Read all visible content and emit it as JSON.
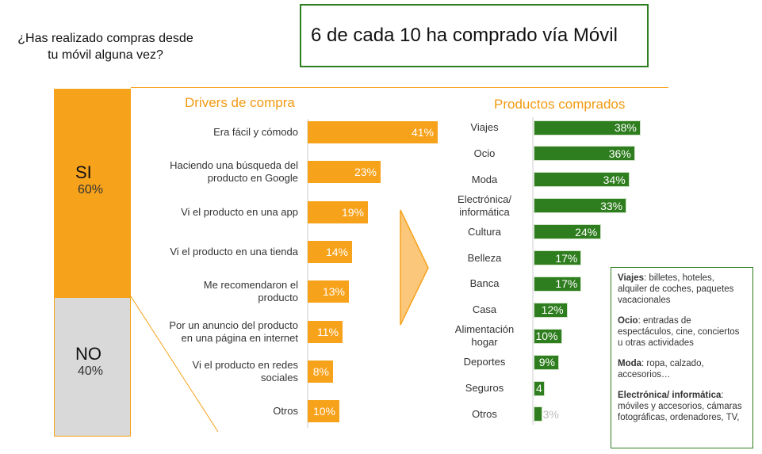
{
  "question": "¿Has realizado compras desde tu móvil alguna vez?",
  "headline": "6 de cada 10 ha comprado vía Móvil",
  "chart_data": [
    {
      "type": "stack",
      "categories": [
        "SI",
        "NO"
      ],
      "values": [
        60,
        40
      ],
      "value_labels": [
        "60%",
        "40%"
      ],
      "colors": [
        "#f7a21b",
        "#d9d9d9"
      ]
    },
    {
      "type": "barh",
      "title": "Drivers de compra",
      "categories": [
        "Era fácil y cómodo",
        "Haciendo una búsqueda del producto en Google",
        "Vi el producto en una app",
        "Vi el producto en una tienda",
        "Me recomendaron el producto",
        "Por un anuncio del producto en una página en internet",
        "Vi el producto en redes sociales",
        "Otros"
      ],
      "values": [
        41,
        23,
        19,
        14,
        13,
        11,
        8,
        10
      ],
      "value_labels": [
        "41%",
        "23%",
        "19%",
        "14%",
        "13%",
        "11%",
        "8%",
        "10%"
      ],
      "color": "#f7a21b"
    },
    {
      "type": "barh",
      "title": "Productos comprados",
      "categories": [
        "Viajes",
        "Ocio",
        "Moda",
        "Electrónica/ informática",
        "Cultura",
        "Belleza",
        "Banca",
        "Casa",
        "Alimentación hogar",
        "Deportes",
        "Seguros",
        "Otros"
      ],
      "values": [
        38,
        36,
        34,
        33,
        24,
        17,
        17,
        12,
        10,
        9,
        4,
        3
      ],
      "value_labels": [
        "38%",
        "36%",
        "34%",
        "33%",
        "24%",
        "17%",
        "17%",
        "12%",
        "10%",
        "9%",
        "4",
        "3%"
      ],
      "color": "#2e7d1e"
    }
  ],
  "notes": [
    {
      "term": "Viajes",
      "text": ": billetes, hoteles, alquiler de coches, paquetes vacacionales"
    },
    {
      "term": "Ocio",
      "text": ": entradas de espectáculos, cine, conciertos u otras actividades"
    },
    {
      "term": "Moda",
      "text": ": ropa, calzado, accesorios…"
    },
    {
      "term": "Electrónica/ informática",
      "text": ": móviles y accesorios, cámaras fotográficas, ordenadores, TV,"
    }
  ]
}
